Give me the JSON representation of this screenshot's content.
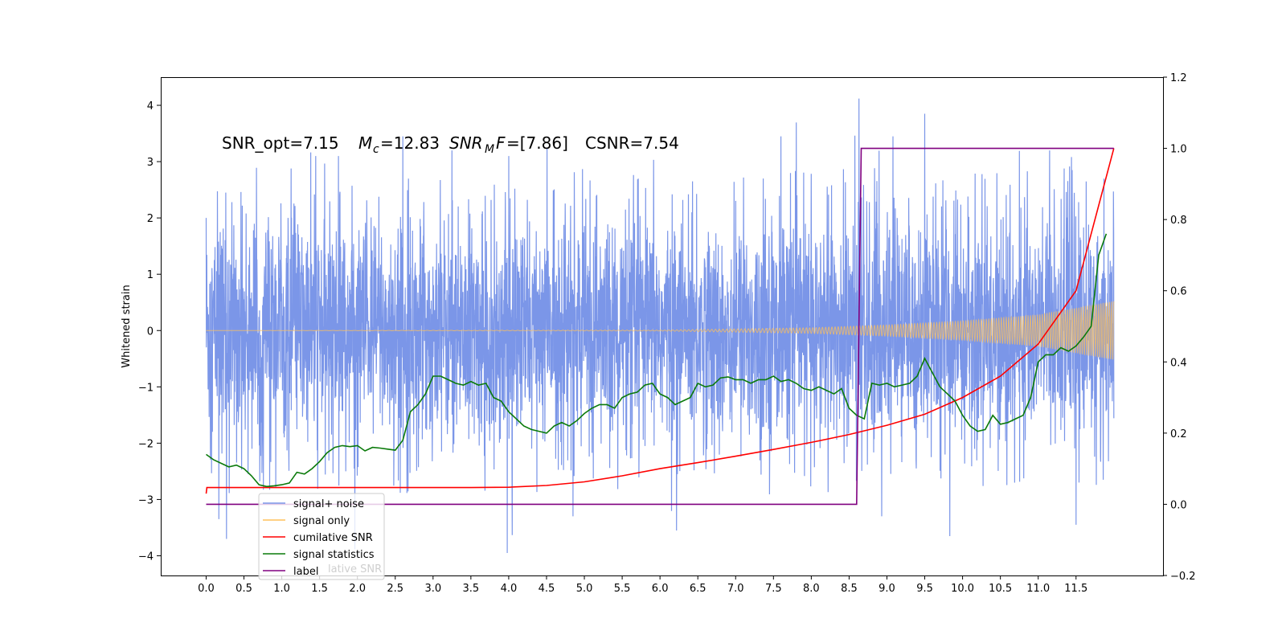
{
  "chart_data": {
    "type": "line",
    "annotation": {
      "snr_opt": "SNR_opt=7.15",
      "mc_symbol": "M",
      "mc_sub": "c",
      "mc_value": "=12.83",
      "snrmf_symbol": "SNR",
      "snrmf_sub": "M",
      "snrmf_f": "F",
      "snrmf_value": "=[7.86]",
      "csnr": "CSNR=7.54"
    },
    "ylabel": "Whitened strain",
    "xlim": [
      -0.6,
      12.65
    ],
    "ylim": [
      -4.35,
      4.5
    ],
    "y2lim": [
      -0.2,
      1.2
    ],
    "x_ticks": [
      "0.0",
      "0.5",
      "1.0",
      "1.5",
      "2.0",
      "2.5",
      "3.0",
      "3.5",
      "4.0",
      "4.5",
      "5.0",
      "5.5",
      "6.0",
      "6.5",
      "7.0",
      "7.5",
      "8.0",
      "8.5",
      "9.0",
      "9.5",
      "10.0",
      "10.5",
      "11.0",
      "11.5"
    ],
    "y_ticks": [
      "4",
      "3",
      "2",
      "1",
      "0",
      "−1",
      "−2",
      "−3",
      "−4"
    ],
    "y2_ticks": [
      "1.2",
      "1.0",
      "0.8",
      "0.6",
      "0.4",
      "0.2",
      "0.0",
      "−0.2"
    ],
    "legend": {
      "placement": "lower-left",
      "entries": [
        {
          "label": "signal+ noise",
          "color": "#7b96e8"
        },
        {
          "label": "signal only",
          "color": "#ffc05a"
        },
        {
          "label": "cumilative SNR",
          "color": "#ff0000"
        },
        {
          "label": "signal statistics",
          "color": "#0a7a0a"
        },
        {
          "label": "label",
          "color": "#800080"
        }
      ],
      "ghost_text": "lative SNR"
    },
    "noise": {
      "t_start": 0.0,
      "t_end": 12.0,
      "typical_amplitude": [
        -2.3,
        2.3
      ],
      "spikes": [
        {
          "t": 0.0,
          "v": 2.0
        },
        {
          "t": 0.17,
          "v": -3.35
        },
        {
          "t": 0.26,
          "v": 2.45
        },
        {
          "t": 0.27,
          "v": -3.7
        },
        {
          "t": 1.45,
          "v": 3.1
        },
        {
          "t": 1.75,
          "v": 3.1
        },
        {
          "t": 2.6,
          "v": 3.45
        },
        {
          "t": 3.25,
          "v": 3.2
        },
        {
          "t": 3.98,
          "v": -3.95
        },
        {
          "t": 4.0,
          "v": 3.1
        },
        {
          "t": 4.85,
          "v": -3.3
        },
        {
          "t": 6.22,
          "v": -3.55
        },
        {
          "t": 7.6,
          "v": 3.45
        },
        {
          "t": 8.63,
          "v": 4.12
        },
        {
          "t": 8.93,
          "v": -3.3
        },
        {
          "t": 9.08,
          "v": 3.45
        },
        {
          "t": 9.5,
          "v": 3.85
        },
        {
          "t": 9.83,
          "v": -3.65
        },
        {
          "t": 11.5,
          "v": -3.45
        },
        {
          "t": 11.15,
          "v": 3.2
        }
      ]
    },
    "signal_only": {
      "t_start": 0.0,
      "t_end": 12.0,
      "amplitude_envelope": [
        [
          0.0,
          0.0
        ],
        [
          6.0,
          0.008
        ],
        [
          8.0,
          0.05
        ],
        [
          9.0,
          0.1
        ],
        [
          10.0,
          0.17
        ],
        [
          11.0,
          0.28
        ],
        [
          12.0,
          0.52
        ]
      ]
    },
    "series": [
      {
        "name": "cumilative SNR",
        "axis": "right",
        "x": [
          0.0,
          0.01,
          1.0,
          2.0,
          3.0,
          3.5,
          4.0,
          4.5,
          5.0,
          5.5,
          6.0,
          6.5,
          7.0,
          7.5,
          8.0,
          8.5,
          9.0,
          9.5,
          10.0,
          10.5,
          11.0,
          11.5,
          12.0
        ],
        "y": [
          0.03,
          0.047,
          0.047,
          0.047,
          0.047,
          0.047,
          0.048,
          0.053,
          0.063,
          0.08,
          0.1,
          0.117,
          0.135,
          0.154,
          0.174,
          0.196,
          0.222,
          0.253,
          0.3,
          0.36,
          0.45,
          0.6,
          1.0
        ]
      },
      {
        "name": "signal statistics",
        "axis": "right",
        "x": [
          0.0,
          0.1,
          0.2,
          0.3,
          0.4,
          0.5,
          0.6,
          0.7,
          0.8,
          0.9,
          1.0,
          1.1,
          1.2,
          1.3,
          1.4,
          1.5,
          1.6,
          1.7,
          1.8,
          1.9,
          2.0,
          2.1,
          2.2,
          2.3,
          2.4,
          2.5,
          2.6,
          2.7,
          2.8,
          2.9,
          3.0,
          3.1,
          3.2,
          3.3,
          3.4,
          3.5,
          3.6,
          3.7,
          3.8,
          3.9,
          4.0,
          4.1,
          4.2,
          4.3,
          4.4,
          4.5,
          4.6,
          4.7,
          4.8,
          4.9,
          5.0,
          5.1,
          5.2,
          5.3,
          5.4,
          5.5,
          5.6,
          5.7,
          5.8,
          5.9,
          6.0,
          6.1,
          6.2,
          6.3,
          6.4,
          6.5,
          6.6,
          6.7,
          6.8,
          6.9,
          7.0,
          7.1,
          7.2,
          7.3,
          7.4,
          7.5,
          7.6,
          7.7,
          7.8,
          7.9,
          8.0,
          8.1,
          8.2,
          8.3,
          8.4,
          8.5,
          8.6,
          8.7,
          8.8,
          8.9,
          9.0,
          9.1,
          9.2,
          9.3,
          9.4,
          9.5,
          9.6,
          9.7,
          9.8,
          9.9,
          10.0,
          10.1,
          10.2,
          10.3,
          10.4,
          10.5,
          10.6,
          10.7,
          10.8,
          10.9,
          11.0,
          11.1,
          11.2,
          11.3,
          11.4,
          11.5,
          11.6,
          11.7,
          11.8,
          11.9
        ],
        "y": [
          0.14,
          0.125,
          0.115,
          0.105,
          0.11,
          0.1,
          0.08,
          0.055,
          0.05,
          0.052,
          0.055,
          0.06,
          0.09,
          0.085,
          0.1,
          0.12,
          0.145,
          0.16,
          0.165,
          0.162,
          0.165,
          0.15,
          0.16,
          0.158,
          0.155,
          0.152,
          0.18,
          0.26,
          0.28,
          0.31,
          0.36,
          0.36,
          0.35,
          0.34,
          0.335,
          0.345,
          0.335,
          0.34,
          0.3,
          0.29,
          0.26,
          0.24,
          0.22,
          0.21,
          0.205,
          0.2,
          0.22,
          0.23,
          0.22,
          0.235,
          0.255,
          0.27,
          0.28,
          0.28,
          0.27,
          0.3,
          0.31,
          0.315,
          0.335,
          0.34,
          0.31,
          0.3,
          0.28,
          0.29,
          0.3,
          0.34,
          0.33,
          0.335,
          0.355,
          0.358,
          0.35,
          0.35,
          0.34,
          0.35,
          0.35,
          0.36,
          0.345,
          0.35,
          0.34,
          0.325,
          0.32,
          0.33,
          0.32,
          0.31,
          0.325,
          0.27,
          0.25,
          0.24,
          0.34,
          0.335,
          0.34,
          0.33,
          0.335,
          0.34,
          0.36,
          0.41,
          0.37,
          0.33,
          0.31,
          0.29,
          0.25,
          0.22,
          0.205,
          0.21,
          0.25,
          0.225,
          0.23,
          0.24,
          0.25,
          0.3,
          0.4,
          0.42,
          0.42,
          0.44,
          0.43,
          0.445,
          0.47,
          0.5,
          0.7,
          0.76
        ]
      },
      {
        "name": "label",
        "axis": "right",
        "x": [
          0.0,
          8.6,
          8.66,
          12.0
        ],
        "y": [
          0.0,
          0.0,
          1.0,
          1.0
        ]
      }
    ]
  }
}
